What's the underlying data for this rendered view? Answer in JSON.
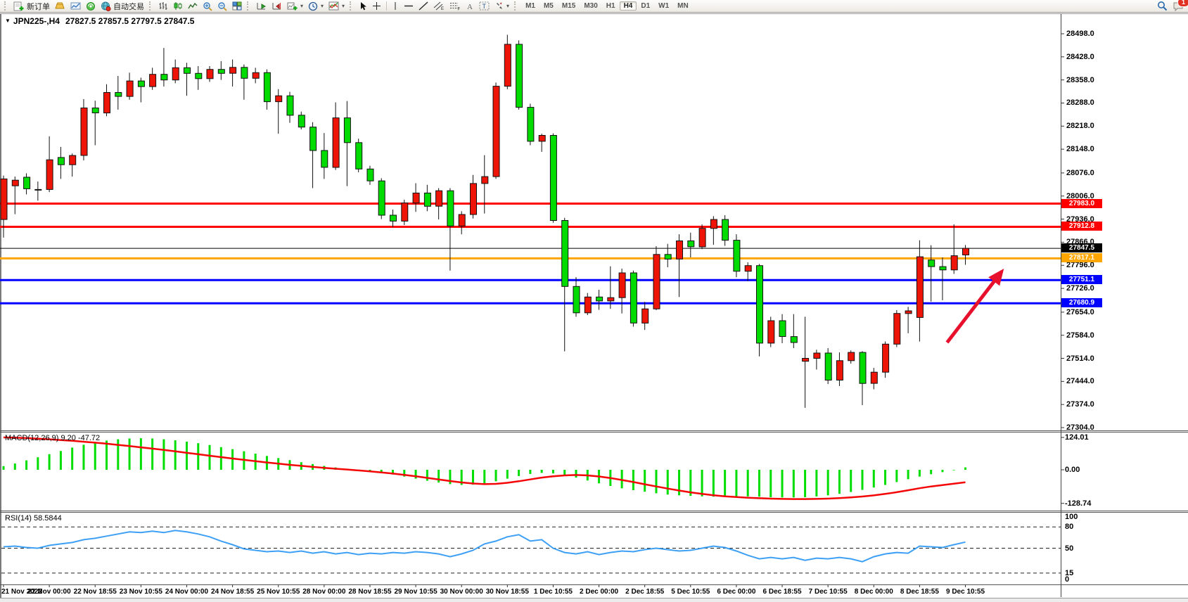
{
  "toolbar": {
    "new_order_label": "新订单",
    "autotrade_label": "自动交易",
    "timeframes": [
      "M1",
      "M5",
      "M15",
      "M30",
      "H1",
      "H4",
      "D1",
      "W1",
      "MN"
    ],
    "active_timeframe": "H4",
    "notification_count": "1",
    "icons": [
      "new-order-icon",
      "gold-icon",
      "history-chart-icon",
      "signal-icon",
      "autotrade-globe-icon",
      "bar-chart-icon",
      "candlestick-icon",
      "line-chart-icon",
      "zoom-in-icon",
      "zoom-out-icon",
      "tile-windows-icon",
      "auto-scroll-icon",
      "chart-shift-icon",
      "new-chart-icon",
      "period-clock-icon",
      "indicators-icon",
      "cursor-icon",
      "crosshair-icon",
      "vertical-line-icon",
      "horizontal-line-icon",
      "trendline-icon",
      "equidistant-channel-icon",
      "fibonacci-icon",
      "text-icon",
      "text-label-icon",
      "arrow-shapes-icon",
      "search-icon",
      "chat-icon"
    ]
  },
  "chart_header": {
    "symbol_period": "JPN225-,H4",
    "ohlc": "27827.5 27857.5 27797.5 27847.5"
  },
  "macd_panel": {
    "name": "MACD(12,26,9)",
    "main_value": "9.20",
    "signal_value": "-47.72",
    "axis": [
      "124.01",
      "0.00",
      "-128.74"
    ]
  },
  "rsi_panel": {
    "name": "RSI(14)",
    "value": "58.5844",
    "axis": [
      "100",
      "80",
      "50",
      "15",
      "0"
    ]
  },
  "chart_data": {
    "type": "candlestick",
    "symbol": "JPN225-",
    "timeframe": "H4",
    "current_ohlc": {
      "open": 27827.5,
      "high": 27857.5,
      "low": 27797.5,
      "close": 27847.5
    },
    "up_color": "#ee1408",
    "down_color": "#00dc00",
    "wick_color": "#111111",
    "price_ticks": [
      28498.0,
      28428.0,
      28358.0,
      28288.0,
      28218.0,
      28148.0,
      28076.0,
      28006.0,
      27936.0,
      27866.0,
      27796.0,
      27726.0,
      27654.0,
      27584.0,
      27514.0,
      27444.0,
      27374.0,
      27304.0
    ],
    "y_range": [
      27304.0,
      28498.0
    ],
    "levels": [
      {
        "label": "27983.0",
        "price": 27983.0,
        "color": "#ff0000",
        "text_color": "#ffffff",
        "line_width": 3
      },
      {
        "label": "27912.8",
        "price": 27912.8,
        "color": "#ff0000",
        "text_color": "#ffffff",
        "line_width": 3
      },
      {
        "label": "27847.5",
        "price": 27847.5,
        "color": "#000000",
        "text_color": "#ffffff",
        "line_width": 1,
        "role": "current-price"
      },
      {
        "label": "27817.1",
        "price": 27817.1,
        "color": "#ffa500",
        "text_color": "#ffffff",
        "line_width": 3
      },
      {
        "label": "27751.1",
        "price": 27751.1,
        "color": "#0000ff",
        "text_color": "#ffffff",
        "line_width": 3
      },
      {
        "label": "27680.9",
        "price": 27680.9,
        "color": "#0000ff",
        "text_color": "#ffffff",
        "line_width": 3
      }
    ],
    "time_labels": [
      "21 Nov 2022",
      "22 Nov 00:00",
      "22 Nov 18:55",
      "23 Nov 10:55",
      "24 Nov 00:00",
      "24 Nov 18:55",
      "25 Nov 10:55",
      "28 Nov 00:00",
      "28 Nov 18:55",
      "29 Nov 10:55",
      "30 Nov 00:00",
      "30 Nov 18:55",
      "1 Dec 10:55",
      "2 Dec 00:00",
      "2 Dec 18:55",
      "5 Dec 10:55",
      "6 Dec 00:00",
      "6 Dec 18:55",
      "7 Dec 10:55",
      "8 Dec 00:00",
      "8 Dec 18:55",
      "9 Dec 10:55"
    ],
    "candles": [
      [
        27935,
        28068,
        27880,
        28058
      ],
      [
        28037,
        28065,
        27951,
        28054
      ],
      [
        28063,
        28075,
        28011,
        28028
      ],
      [
        28024,
        28050,
        27992,
        28026
      ],
      [
        28026,
        28187,
        28018,
        28116
      ],
      [
        28123,
        28155,
        28058,
        28101
      ],
      [
        28101,
        28135,
        28065,
        28129
      ],
      [
        28129,
        28300,
        28114,
        28273
      ],
      [
        28273,
        28295,
        28160,
        28258
      ],
      [
        28258,
        28345,
        28248,
        28320
      ],
      [
        28320,
        28370,
        28268,
        28308
      ],
      [
        28308,
        28380,
        28298,
        28355
      ],
      [
        28355,
        28365,
        28290,
        28338
      ],
      [
        28338,
        28395,
        28328,
        28375
      ],
      [
        28375,
        28455,
        28338,
        28358
      ],
      [
        28358,
        28420,
        28348,
        28395
      ],
      [
        28395,
        28410,
        28310,
        28378
      ],
      [
        28378,
        28400,
        28328,
        28362
      ],
      [
        28362,
        28400,
        28352,
        28390
      ],
      [
        28390,
        28415,
        28358,
        28378
      ],
      [
        28378,
        28420,
        28338,
        28396
      ],
      [
        28396,
        28405,
        28298,
        28363
      ],
      [
        28363,
        28395,
        28348,
        28380
      ],
      [
        28380,
        28390,
        28268,
        28292
      ],
      [
        28292,
        28330,
        28195,
        28310
      ],
      [
        28310,
        28322,
        28228,
        28251
      ],
      [
        28251,
        28262,
        28208,
        28215
      ],
      [
        28215,
        28230,
        28030,
        28144
      ],
      [
        28144,
        28197,
        28058,
        28093
      ],
      [
        28093,
        28290,
        28085,
        28243
      ],
      [
        28243,
        28294,
        28036,
        28168
      ],
      [
        28168,
        28180,
        28078,
        28088
      ],
      [
        28088,
        28098,
        28040,
        28052
      ],
      [
        28052,
        28060,
        27936,
        27948
      ],
      [
        27948,
        27965,
        27912,
        27930
      ],
      [
        27930,
        27995,
        27918,
        27985
      ],
      [
        27985,
        28045,
        27958,
        28015
      ],
      [
        28015,
        28040,
        27960,
        27975
      ],
      [
        27975,
        28030,
        27935,
        28022
      ],
      [
        28022,
        28030,
        27780,
        27915
      ],
      [
        27915,
        27960,
        27890,
        27950
      ],
      [
        27950,
        28070,
        27938,
        28044
      ],
      [
        28044,
        28130,
        27953,
        28065
      ],
      [
        28065,
        28350,
        28058,
        28339
      ],
      [
        28339,
        28495,
        28330,
        28466
      ],
      [
        28466,
        28478,
        28268,
        28275
      ],
      [
        28275,
        28286,
        28160,
        28172
      ],
      [
        28172,
        28195,
        28140,
        28190
      ],
      [
        28190,
        28196,
        27925,
        27932
      ],
      [
        27932,
        27940,
        27535,
        27732
      ],
      [
        27732,
        27760,
        27640,
        27652
      ],
      [
        27652,
        27712,
        27645,
        27700
      ],
      [
        27700,
        27722,
        27661,
        27688
      ],
      [
        27688,
        27793,
        27664,
        27698
      ],
      [
        27698,
        27786,
        27650,
        27773
      ],
      [
        27773,
        27780,
        27610,
        27621
      ],
      [
        27621,
        27685,
        27600,
        27664
      ],
      [
        27664,
        27854,
        27660,
        27829
      ],
      [
        27829,
        27861,
        27790,
        27815
      ],
      [
        27815,
        27890,
        27700,
        27870
      ],
      [
        27870,
        27895,
        27820,
        27852
      ],
      [
        27852,
        27920,
        27845,
        27908
      ],
      [
        27908,
        27945,
        27858,
        27935
      ],
      [
        27935,
        27948,
        27855,
        27872
      ],
      [
        27872,
        27890,
        27760,
        27778
      ],
      [
        27778,
        27805,
        27748,
        27795
      ],
      [
        27795,
        27800,
        27520,
        27560
      ],
      [
        27560,
        27640,
        27548,
        27628
      ],
      [
        27628,
        27648,
        27560,
        27580
      ],
      [
        27580,
        27648,
        27545,
        27562
      ],
      [
        27505,
        27640,
        27364,
        27514
      ],
      [
        27514,
        27540,
        27480,
        27530
      ],
      [
        27530,
        27545,
        27436,
        27448
      ],
      [
        27448,
        27532,
        27430,
        27507
      ],
      [
        27507,
        27538,
        27498,
        27532
      ],
      [
        27532,
        27536,
        27372,
        27438
      ],
      [
        27438,
        27485,
        27420,
        27472
      ],
      [
        27472,
        27565,
        27455,
        27557
      ],
      [
        27557,
        27660,
        27548,
        27650
      ],
      [
        27650,
        27670,
        27590,
        27658
      ],
      [
        27638,
        27872,
        27565,
        27822
      ],
      [
        27812,
        27857,
        27686,
        27792
      ],
      [
        27792,
        27820,
        27690,
        27782
      ],
      [
        27782,
        27920,
        27770,
        27825
      ],
      [
        27827.5,
        27857.5,
        27797.5,
        27847.5
      ]
    ],
    "macd": {
      "bar_color": "#00dd00",
      "signal_color": "#f40606",
      "axis_range": [
        -128.74,
        124.01
      ],
      "histogram": [
        14,
        24,
        36,
        48,
        60,
        72,
        85,
        96,
        105,
        112,
        117,
        120,
        121,
        120,
        117,
        113,
        108,
        102,
        95,
        87,
        79,
        71,
        62,
        53,
        45,
        37,
        29,
        22,
        15,
        9,
        4,
        0,
        -5,
        -11,
        -18,
        -26,
        -34,
        -42,
        -49,
        -55,
        -58,
        -57,
        -52,
        -44,
        -34,
        -24,
        -16,
        -12,
        -14,
        -20,
        -30,
        -41,
        -52,
        -62,
        -71,
        -78,
        -84,
        -90,
        -95,
        -98,
        -100,
        -102,
        -103,
        -103,
        -102,
        -102,
        -103,
        -105,
        -106,
        -106,
        -105,
        -102,
        -98,
        -92,
        -85,
        -77,
        -68,
        -58,
        -47,
        -36,
        -26,
        -17,
        -9,
        -2,
        9.2
      ],
      "signal": [
        124,
        123,
        121.5,
        119.5,
        117,
        114,
        111,
        107.5,
        104,
        100,
        95.5,
        91,
        86,
        81,
        76,
        70.5,
        65,
        59.5,
        54,
        48.5,
        43,
        38,
        33,
        28,
        23.5,
        19,
        15,
        11,
        7.5,
        4,
        1,
        -2.5,
        -6,
        -10,
        -14.5,
        -19.5,
        -25,
        -31,
        -37,
        -43,
        -48.5,
        -52.5,
        -55,
        -54,
        -50,
        -44,
        -37,
        -30,
        -25,
        -21.5,
        -20,
        -21.5,
        -25.5,
        -31.5,
        -39,
        -47,
        -55.5,
        -64,
        -72,
        -79.5,
        -86.5,
        -92.5,
        -97.5,
        -101.5,
        -104.5,
        -107,
        -109,
        -110.5,
        -111.5,
        -112,
        -112,
        -111.5,
        -110.5,
        -108.5,
        -106,
        -102.5,
        -98,
        -92.5,
        -86,
        -78.5,
        -70.5,
        -64,
        -58.5,
        -53,
        -47.72
      ]
    },
    "rsi": {
      "line_color": "#3da0f5",
      "range": [
        0,
        100
      ],
      "dashed_levels": [
        80,
        50,
        15
      ],
      "values": [
        52,
        53,
        51,
        50,
        54,
        56,
        58,
        62,
        64,
        67,
        70,
        73,
        72,
        74,
        72,
        75,
        73,
        70,
        66,
        60,
        55,
        49,
        47,
        45,
        46,
        44,
        46,
        43,
        45,
        42,
        44,
        41,
        43,
        42,
        44,
        43,
        45,
        44,
        42,
        38,
        42,
        47,
        56,
        60,
        66,
        69,
        60,
        62,
        50,
        44,
        42,
        45,
        41,
        44,
        46,
        45,
        48,
        50,
        48,
        46,
        47,
        50,
        53,
        51,
        46,
        40,
        35,
        37,
        35,
        37,
        33,
        36,
        35,
        37,
        35,
        31,
        38,
        42,
        44,
        43,
        53,
        52,
        51,
        55,
        58.58
      ]
    },
    "annotation_arrow": {
      "color": "#e8112d",
      "from": {
        "index": 82.4,
        "price": 27562
      },
      "to": {
        "index": 87.7,
        "price": 27801
      }
    }
  }
}
